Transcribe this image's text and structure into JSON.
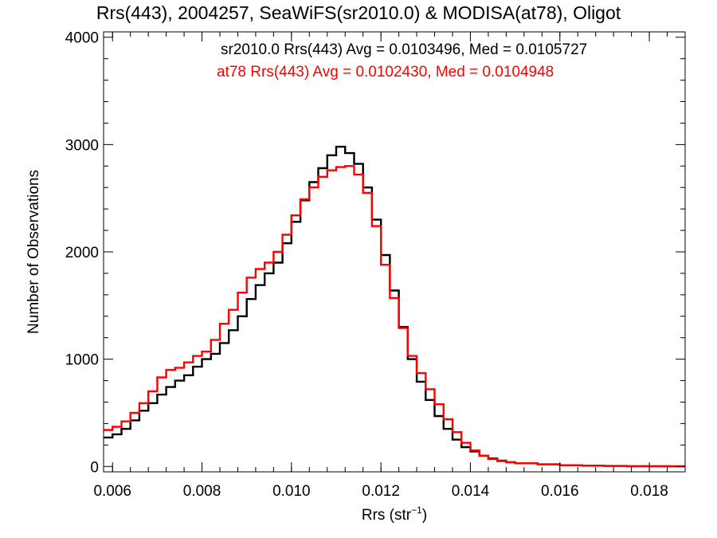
{
  "chart_data": {
    "type": "line",
    "style": "histogram-step",
    "title": "Rrs(443), 2004257, SeaWiFS(sr2010.0) & MODISA(at78), Oligot",
    "xlabel_base": "Rrs (str",
    "xlabel_sup": "−1",
    "xlabel_close": ")",
    "ylabel": "Number of Observations",
    "xlim": [
      0.0058,
      0.0188
    ],
    "ylim": [
      -50,
      4050
    ],
    "xticks": [
      {
        "value": 0.006,
        "label": "0.006"
      },
      {
        "value": 0.008,
        "label": "0.008"
      },
      {
        "value": 0.01,
        "label": "0.010"
      },
      {
        "value": 0.012,
        "label": "0.012"
      },
      {
        "value": 0.014,
        "label": "0.014"
      },
      {
        "value": 0.016,
        "label": "0.016"
      },
      {
        "value": 0.018,
        "label": "0.018"
      }
    ],
    "yticks": [
      {
        "value": 0,
        "label": "0"
      },
      {
        "value": 1000,
        "label": "1000"
      },
      {
        "value": 2000,
        "label": "2000"
      },
      {
        "value": 3000,
        "label": "3000"
      },
      {
        "value": 4000,
        "label": "4000"
      }
    ],
    "grid": false,
    "legend": [
      {
        "text": "sr2010.0 Rrs(443) Avg = 0.0103496, Med = 0.0105727",
        "color": "#000000"
      },
      {
        "text": "at78 Rrs(443) Avg = 0.0102430, Med = 0.0104948",
        "color": "#ff0000"
      }
    ],
    "series": [
      {
        "color": "#000000",
        "x": [
          0.0058,
          0.006,
          0.0062,
          0.0064,
          0.0066,
          0.0068,
          0.007,
          0.0072,
          0.0074,
          0.0076,
          0.0078,
          0.008,
          0.0082,
          0.0084,
          0.0086,
          0.0088,
          0.009,
          0.0092,
          0.0094,
          0.0096,
          0.0098,
          0.01,
          0.0102,
          0.0104,
          0.0106,
          0.0108,
          0.011,
          0.0112,
          0.0114,
          0.0116,
          0.0118,
          0.012,
          0.0122,
          0.0124,
          0.0126,
          0.0128,
          0.013,
          0.0132,
          0.0134,
          0.0136,
          0.0138,
          0.014,
          0.0142,
          0.0144,
          0.0146,
          0.0148,
          0.015,
          0.0155,
          0.016,
          0.0165,
          0.017,
          0.0175,
          0.018,
          0.0185,
          0.0188
        ],
        "y": [
          270,
          300,
          350,
          430,
          520,
          590,
          670,
          740,
          800,
          850,
          930,
          1000,
          1050,
          1150,
          1270,
          1400,
          1560,
          1690,
          1800,
          1900,
          2080,
          2280,
          2480,
          2650,
          2780,
          2900,
          2980,
          2920,
          2820,
          2600,
          2300,
          1970,
          1640,
          1300,
          1000,
          790,
          620,
          470,
          350,
          250,
          180,
          140,
          100,
          75,
          55,
          40,
          30,
          20,
          12,
          8,
          5,
          3,
          2,
          1,
          1
        ]
      },
      {
        "color": "#ff0000",
        "x": [
          0.0058,
          0.006,
          0.0062,
          0.0064,
          0.0066,
          0.0068,
          0.007,
          0.0072,
          0.0074,
          0.0076,
          0.0078,
          0.008,
          0.0082,
          0.0084,
          0.0086,
          0.0088,
          0.009,
          0.0092,
          0.0094,
          0.0096,
          0.0098,
          0.01,
          0.0102,
          0.0104,
          0.0106,
          0.0108,
          0.011,
          0.0112,
          0.0114,
          0.0116,
          0.0118,
          0.012,
          0.0122,
          0.0124,
          0.0126,
          0.0128,
          0.013,
          0.0132,
          0.0134,
          0.0136,
          0.0138,
          0.014,
          0.0142,
          0.0144,
          0.0146,
          0.0148,
          0.015,
          0.0155,
          0.016,
          0.0165,
          0.017,
          0.0175,
          0.018,
          0.0185,
          0.0188
        ],
        "y": [
          340,
          370,
          420,
          500,
          590,
          700,
          830,
          900,
          920,
          970,
          1030,
          1070,
          1180,
          1330,
          1460,
          1620,
          1760,
          1840,
          1900,
          2000,
          2160,
          2340,
          2490,
          2600,
          2700,
          2760,
          2790,
          2800,
          2720,
          2550,
          2240,
          1880,
          1570,
          1290,
          1030,
          870,
          720,
          580,
          440,
          320,
          220,
          150,
          100,
          70,
          50,
          40,
          30,
          20,
          12,
          7,
          4,
          2,
          1,
          1,
          1
        ]
      }
    ]
  }
}
